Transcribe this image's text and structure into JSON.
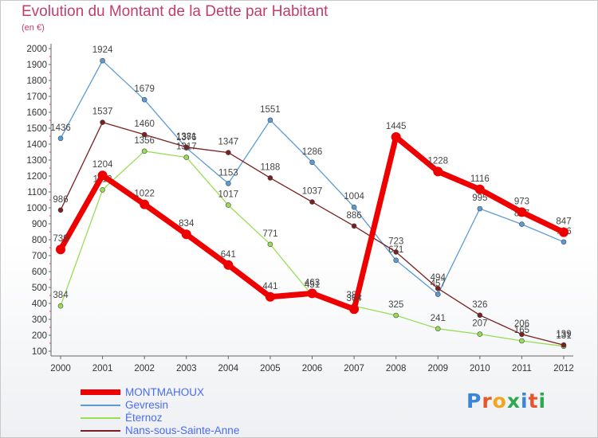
{
  "title": "Evolution du Montant de la Dette par Habitant",
  "subtitle": "(en €)",
  "logo": "Proxiti",
  "chart_data": {
    "type": "line",
    "x": [
      "2000",
      "2001",
      "2002",
      "2003",
      "2004",
      "2005",
      "2006",
      "2007",
      "2008",
      "2009",
      "2010",
      "2011",
      "2012"
    ],
    "ylim": [
      100,
      2000
    ],
    "yticks": [
      100,
      200,
      300,
      400,
      500,
      600,
      700,
      800,
      900,
      1000,
      1100,
      1200,
      1300,
      1400,
      1500,
      1600,
      1700,
      1800,
      1900,
      2000
    ],
    "grid": false,
    "legend": "bottom-left",
    "series": [
      {
        "name": "MONTMAHOUX",
        "color": "#ee0000",
        "values": [
          739,
          1204,
          1022,
          834,
          641,
          441,
          463,
          364,
          1445,
          1228,
          1116,
          973,
          847
        ]
      },
      {
        "name": "Gevresin",
        "color": "#5b9bd5",
        "values": [
          1436,
          1924,
          1679,
          1376,
          1153,
          1551,
          1286,
          1004,
          671,
          457,
          995,
          897,
          786
        ]
      },
      {
        "name": "Éternoz",
        "color": "#99dd55",
        "values": [
          384,
          1113,
          1356,
          1317,
          1017,
          771,
          451,
          384,
          325,
          241,
          207,
          165,
          131
        ]
      },
      {
        "name": "Nans-sous-Sainte-Anne",
        "color": "#7a2020",
        "values": [
          986,
          1537,
          1460,
          1381,
          1347,
          1188,
          1037,
          886,
          723,
          494,
          326,
          206,
          139
        ]
      }
    ]
  }
}
